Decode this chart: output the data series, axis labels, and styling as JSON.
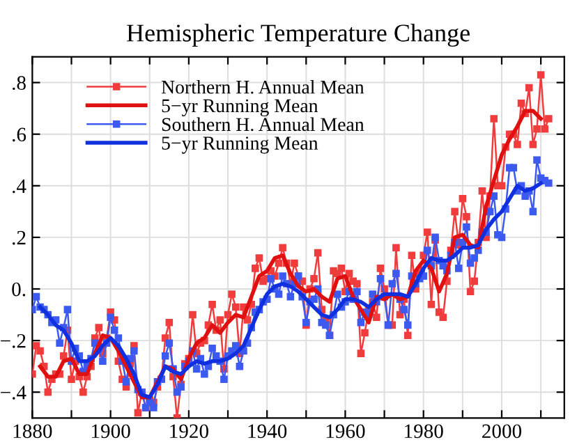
{
  "chart_data": {
    "type": "line",
    "title": "Hemispheric Temperature Change",
    "xlim": [
      1880,
      2016
    ],
    "ylim": [
      -0.5,
      0.9
    ],
    "xticks": [
      1880,
      {
        "value": 1890,
        "label": null
      },
      1900,
      {
        "value": 1910,
        "label": null
      },
      1920,
      {
        "value": 1930,
        "label": null
      },
      1940,
      {
        "value": 1950,
        "label": null
      },
      1960,
      {
        "value": 1970,
        "label": null
      },
      1980,
      {
        "value": 1990,
        "label": null
      },
      2000,
      {
        "value": 2010,
        "label": null
      }
    ],
    "yticks": [
      {
        "value": -0.4,
        "label": "−.4"
      },
      {
        "value": -0.2,
        "label": "−.2"
      },
      {
        "value": 0,
        "label": "0."
      },
      {
        "value": 0.2,
        "label": ".2"
      },
      {
        "value": 0.4,
        "label": ".4"
      },
      {
        "value": 0.6,
        "label": ".6"
      },
      {
        "value": 0.8,
        "label": ".8"
      }
    ],
    "grid": true,
    "legend": "top left",
    "series": [
      {
        "name": "Northern H. Annual Mean",
        "color": "#f03c3c",
        "marker": "square",
        "x": [
          1880,
          1881,
          1882,
          1883,
          1884,
          1885,
          1886,
          1887,
          1888,
          1889,
          1890,
          1891,
          1892,
          1893,
          1894,
          1895,
          1896,
          1897,
          1898,
          1899,
          1900,
          1901,
          1902,
          1903,
          1904,
          1905,
          1906,
          1907,
          1908,
          1909,
          1910,
          1911,
          1912,
          1913,
          1914,
          1915,
          1916,
          1917,
          1918,
          1919,
          1920,
          1921,
          1922,
          1923,
          1924,
          1925,
          1926,
          1927,
          1928,
          1929,
          1930,
          1931,
          1932,
          1933,
          1934,
          1935,
          1936,
          1937,
          1938,
          1939,
          1940,
          1941,
          1942,
          1943,
          1944,
          1945,
          1946,
          1947,
          1948,
          1949,
          1950,
          1951,
          1952,
          1953,
          1954,
          1955,
          1956,
          1957,
          1958,
          1959,
          1960,
          1961,
          1962,
          1963,
          1964,
          1965,
          1966,
          1967,
          1968,
          1969,
          1970,
          1971,
          1972,
          1973,
          1974,
          1975,
          1976,
          1977,
          1978,
          1979,
          1980,
          1981,
          1982,
          1983,
          1984,
          1985,
          1986,
          1987,
          1988,
          1989,
          1990,
          1991,
          1992,
          1993,
          1994,
          1995,
          1996,
          1997,
          1998,
          1999,
          2000,
          2001,
          2002,
          2003,
          2004,
          2005,
          2006,
          2007,
          2008,
          2009,
          2010,
          2011,
          2012
        ],
        "values": [
          -0.33,
          -0.22,
          -0.24,
          -0.3,
          -0.4,
          -0.35,
          -0.33,
          -0.33,
          -0.26,
          -0.16,
          -0.35,
          -0.28,
          -0.34,
          -0.4,
          -0.34,
          -0.3,
          -0.19,
          -0.15,
          -0.25,
          -0.19,
          -0.09,
          -0.12,
          -0.28,
          -0.35,
          -0.38,
          -0.29,
          -0.22,
          -0.48,
          -0.4,
          -0.46,
          -0.43,
          -0.44,
          -0.38,
          -0.35,
          -0.19,
          -0.13,
          -0.34,
          -0.5,
          -0.37,
          -0.29,
          -0.27,
          -0.1,
          -0.25,
          -0.21,
          -0.2,
          -0.14,
          -0.06,
          -0.16,
          -0.12,
          -0.31,
          -0.1,
          -0.02,
          -0.07,
          -0.25,
          -0.07,
          -0.12,
          -0.06,
          0.08,
          0.12,
          0.03,
          0.04,
          0.07,
          0.05,
          0.1,
          0.16,
          0.1,
          0.02,
          0.1,
          0.05,
          0.03,
          -0.14,
          0.0,
          0.04,
          0.14,
          -0.08,
          -0.12,
          -0.18,
          0.07,
          0.06,
          0.08,
          -0.01,
          0.06,
          0.03,
          0.02,
          -0.25,
          -0.17,
          -0.08,
          -0.05,
          -0.11,
          0.08,
          0.0,
          -0.14,
          -0.14,
          0.16,
          -0.1,
          -0.04,
          -0.18,
          0.13,
          0.0,
          0.06,
          0.13,
          0.22,
          -0.06,
          0.19,
          -0.09,
          -0.11,
          0.03,
          0.15,
          0.3,
          0.17,
          0.35,
          0.28,
          -0.01,
          0.03,
          0.18,
          0.38,
          0.2,
          0.36,
          0.66,
          0.4,
          0.4,
          0.55,
          0.6,
          0.6,
          0.56,
          0.72,
          0.68,
          0.78,
          0.56,
          0.62,
          0.83,
          0.62,
          0.66
        ]
      },
      {
        "name": "5−yr Running Mean",
        "color": "#e01010",
        "marker": "none",
        "x": [
          1882,
          1884,
          1886,
          1888,
          1890,
          1892,
          1894,
          1896,
          1898,
          1900,
          1902,
          1904,
          1906,
          1908,
          1910,
          1912,
          1914,
          1916,
          1918,
          1920,
          1922,
          1924,
          1926,
          1928,
          1930,
          1932,
          1934,
          1936,
          1938,
          1940,
          1942,
          1944,
          1946,
          1948,
          1950,
          1952,
          1954,
          1956,
          1958,
          1960,
          1962,
          1964,
          1966,
          1968,
          1970,
          1972,
          1974,
          1976,
          1978,
          1980,
          1982,
          1984,
          1986,
          1988,
          1990,
          1992,
          1994,
          1996,
          1998,
          2000,
          2002,
          2004,
          2006,
          2008,
          2010
        ],
        "values": [
          -0.3,
          -0.34,
          -0.34,
          -0.28,
          -0.27,
          -0.33,
          -0.33,
          -0.25,
          -0.18,
          -0.19,
          -0.24,
          -0.3,
          -0.36,
          -0.42,
          -0.42,
          -0.36,
          -0.3,
          -0.31,
          -0.35,
          -0.27,
          -0.21,
          -0.19,
          -0.14,
          -0.17,
          -0.13,
          -0.1,
          -0.11,
          -0.03,
          0.05,
          0.07,
          0.12,
          0.13,
          0.06,
          0.01,
          -0.01,
          0.0,
          -0.03,
          -0.05,
          0.04,
          0.05,
          -0.03,
          -0.08,
          -0.13,
          -0.03,
          -0.04,
          -0.02,
          -0.04,
          -0.03,
          0.07,
          0.11,
          0.08,
          -0.01,
          0.06,
          0.2,
          0.21,
          0.17,
          0.16,
          0.32,
          0.42,
          0.52,
          0.58,
          0.63,
          0.69,
          0.69,
          0.66
        ]
      },
      {
        "name": "Southern H. Annual Mean",
        "color": "#3c5af0",
        "marker": "square",
        "x": [
          1880,
          1881,
          1882,
          1883,
          1884,
          1885,
          1886,
          1887,
          1888,
          1889,
          1890,
          1891,
          1892,
          1893,
          1894,
          1895,
          1896,
          1897,
          1898,
          1899,
          1900,
          1901,
          1902,
          1903,
          1904,
          1905,
          1906,
          1907,
          1908,
          1909,
          1910,
          1911,
          1912,
          1913,
          1914,
          1915,
          1916,
          1917,
          1918,
          1919,
          1920,
          1921,
          1922,
          1923,
          1924,
          1925,
          1926,
          1927,
          1928,
          1929,
          1930,
          1931,
          1932,
          1933,
          1934,
          1935,
          1936,
          1937,
          1938,
          1939,
          1940,
          1941,
          1942,
          1943,
          1944,
          1945,
          1946,
          1947,
          1948,
          1949,
          1950,
          1951,
          1952,
          1953,
          1954,
          1955,
          1956,
          1957,
          1958,
          1959,
          1960,
          1961,
          1962,
          1963,
          1964,
          1965,
          1966,
          1967,
          1968,
          1969,
          1970,
          1971,
          1972,
          1973,
          1974,
          1975,
          1976,
          1977,
          1978,
          1979,
          1980,
          1981,
          1982,
          1983,
          1984,
          1985,
          1986,
          1987,
          1988,
          1989,
          1990,
          1991,
          1992,
          1993,
          1994,
          1995,
          1996,
          1997,
          1998,
          1999,
          2000,
          2001,
          2002,
          2003,
          2004,
          2005,
          2006,
          2007,
          2008,
          2009,
          2010,
          2011,
          2012
        ],
        "values": [
          -0.08,
          -0.03,
          -0.07,
          -0.08,
          -0.1,
          -0.13,
          -0.12,
          -0.21,
          -0.15,
          -0.08,
          -0.28,
          -0.23,
          -0.26,
          -0.32,
          -0.3,
          -0.27,
          -0.21,
          -0.23,
          -0.28,
          -0.21,
          -0.11,
          -0.16,
          -0.19,
          -0.28,
          -0.36,
          -0.27,
          -0.24,
          -0.39,
          -0.4,
          -0.46,
          -0.44,
          -0.46,
          -0.36,
          -0.35,
          -0.26,
          -0.21,
          -0.31,
          -0.4,
          -0.38,
          -0.3,
          -0.28,
          -0.24,
          -0.31,
          -0.27,
          -0.33,
          -0.3,
          -0.23,
          -0.26,
          -0.28,
          -0.35,
          -0.26,
          -0.24,
          -0.22,
          -0.3,
          -0.24,
          -0.21,
          -0.15,
          -0.09,
          -0.08,
          -0.05,
          -0.04,
          0.04,
          0.0,
          -0.02,
          0.05,
          0.02,
          -0.03,
          0.02,
          0.05,
          -0.03,
          -0.13,
          -0.05,
          -0.04,
          0.0,
          -0.13,
          -0.14,
          -0.18,
          -0.1,
          -0.02,
          -0.07,
          -0.05,
          -0.01,
          -0.04,
          -0.01,
          -0.13,
          -0.09,
          -0.1,
          -0.02,
          -0.05,
          0.04,
          -0.03,
          -0.14,
          0.02,
          0.06,
          -0.04,
          -0.08,
          -0.14,
          0.05,
          0.02,
          0.04,
          0.05,
          0.15,
          0.09,
          0.2,
          0.11,
          0.09,
          0.07,
          0.13,
          0.18,
          0.08,
          0.18,
          0.24,
          0.1,
          0.12,
          0.15,
          0.22,
          0.22,
          0.3,
          0.36,
          0.21,
          0.2,
          0.31,
          0.47,
          0.47,
          0.38,
          0.4,
          0.36,
          0.38,
          0.3,
          0.5,
          0.43,
          0.42,
          0.41
        ]
      },
      {
        "name": "5−yr Running Mean",
        "color": "#1030e0",
        "marker": "none",
        "x": [
          1882,
          1884,
          1886,
          1888,
          1890,
          1892,
          1894,
          1896,
          1898,
          1900,
          1902,
          1904,
          1906,
          1908,
          1910,
          1912,
          1914,
          1916,
          1918,
          1920,
          1922,
          1924,
          1926,
          1928,
          1930,
          1932,
          1934,
          1936,
          1938,
          1940,
          1942,
          1944,
          1946,
          1948,
          1950,
          1952,
          1954,
          1956,
          1958,
          1960,
          1962,
          1964,
          1966,
          1968,
          1970,
          1972,
          1974,
          1976,
          1978,
          1980,
          1982,
          1984,
          1986,
          1988,
          1990,
          1992,
          1994,
          1996,
          1998,
          2000,
          2002,
          2004,
          2006,
          2008,
          2010
        ],
        "values": [
          -0.07,
          -0.1,
          -0.14,
          -0.16,
          -0.21,
          -0.28,
          -0.28,
          -0.26,
          -0.22,
          -0.19,
          -0.22,
          -0.27,
          -0.33,
          -0.41,
          -0.42,
          -0.37,
          -0.3,
          -0.32,
          -0.33,
          -0.3,
          -0.28,
          -0.29,
          -0.28,
          -0.28,
          -0.27,
          -0.25,
          -0.22,
          -0.15,
          -0.08,
          -0.02,
          0.01,
          0.02,
          0.01,
          -0.01,
          -0.04,
          -0.07,
          -0.1,
          -0.11,
          -0.08,
          -0.04,
          -0.04,
          -0.05,
          -0.07,
          -0.04,
          -0.02,
          -0.02,
          -0.02,
          -0.03,
          0.02,
          0.08,
          0.12,
          0.11,
          0.11,
          0.13,
          0.16,
          0.16,
          0.17,
          0.23,
          0.27,
          0.3,
          0.35,
          0.4,
          0.38,
          0.39,
          0.41
        ]
      }
    ]
  }
}
